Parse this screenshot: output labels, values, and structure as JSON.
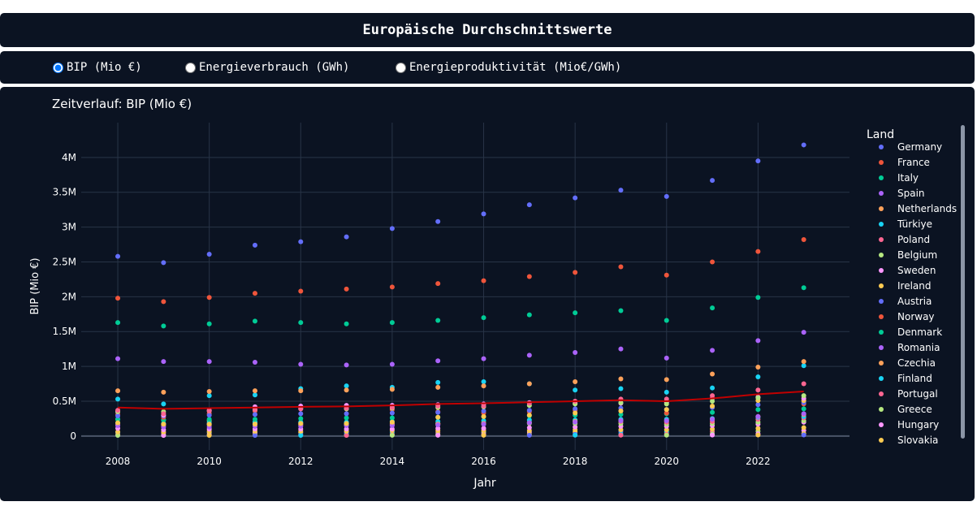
{
  "header": {
    "title": "Europäische Durchschnittswerte"
  },
  "radios": [
    {
      "label": "BIP (Mio €)",
      "checked": true
    },
    {
      "label": "Energieverbrauch (GWh)",
      "checked": false
    },
    {
      "label": "Energieproduktivität (Mio€/GWh)",
      "checked": false
    }
  ],
  "chart_data": {
    "type": "scatter",
    "title": "Zeitverlauf: BIP (Mio €)",
    "xlabel": "Jahr",
    "ylabel": "BIP (Mio €)",
    "xlim": [
      2007.2,
      2024.0
    ],
    "ylim": [
      -200000,
      4500000
    ],
    "x_ticks": [
      2008,
      2010,
      2012,
      2014,
      2016,
      2018,
      2020,
      2022
    ],
    "y_ticks": [
      {
        "value": 0,
        "label": "0"
      },
      {
        "value": 500000,
        "label": "0.5M"
      },
      {
        "value": 1000000,
        "label": "1M"
      },
      {
        "value": 1500000,
        "label": "1.5M"
      },
      {
        "value": 2000000,
        "label": "2M"
      },
      {
        "value": 2500000,
        "label": "2.5M"
      },
      {
        "value": 3000000,
        "label": "3M"
      },
      {
        "value": 3500000,
        "label": "3.5M"
      },
      {
        "value": 4000000,
        "label": "4M"
      }
    ],
    "grid": true,
    "legend_title": "Land",
    "legend_position": "right",
    "x": [
      2008,
      2009,
      2010,
      2011,
      2012,
      2013,
      2014,
      2015,
      2016,
      2017,
      2018,
      2019,
      2020,
      2021,
      2022,
      2023
    ],
    "series": [
      {
        "name": "Germany",
        "color": "#636efa",
        "values": [
          2580000,
          2490000,
          2610000,
          2740000,
          2790000,
          2860000,
          2980000,
          3080000,
          3190000,
          3320000,
          3420000,
          3530000,
          3440000,
          3670000,
          3950000,
          4180000
        ]
      },
      {
        "name": "France",
        "color": "#ef553b",
        "values": [
          1980000,
          1930000,
          1990000,
          2050000,
          2080000,
          2110000,
          2140000,
          2190000,
          2230000,
          2290000,
          2350000,
          2430000,
          2310000,
          2500000,
          2650000,
          2820000
        ]
      },
      {
        "name": "Italy",
        "color": "#00cc96",
        "values": [
          1630000,
          1580000,
          1610000,
          1650000,
          1630000,
          1610000,
          1630000,
          1660000,
          1700000,
          1740000,
          1770000,
          1800000,
          1660000,
          1840000,
          1990000,
          2130000
        ]
      },
      {
        "name": "Spain",
        "color": "#ab63fa",
        "values": [
          1110000,
          1070000,
          1070000,
          1060000,
          1030000,
          1020000,
          1030000,
          1080000,
          1110000,
          1160000,
          1200000,
          1250000,
          1120000,
          1230000,
          1370000,
          1490000
        ]
      },
      {
        "name": "Netherlands",
        "color": "#ffa15a",
        "values": [
          650000,
          630000,
          640000,
          650000,
          650000,
          660000,
          670000,
          700000,
          720000,
          750000,
          780000,
          820000,
          810000,
          890000,
          990000,
          1070000
        ]
      },
      {
        "name": "Türkiye",
        "color": "#19d3f3",
        "values": [
          530000,
          460000,
          580000,
          590000,
          680000,
          720000,
          700000,
          770000,
          780000,
          750000,
          660000,
          680000,
          630000,
          690000,
          850000,
          1010000
        ]
      },
      {
        "name": "Poland",
        "color": "#ff6692",
        "values": [
          370000,
          320000,
          360000,
          380000,
          390000,
          400000,
          410000,
          430000,
          430000,
          470000,
          500000,
          530000,
          530000,
          580000,
          660000,
          750000
        ]
      },
      {
        "name": "Belgium",
        "color": "#b6e880",
        "values": [
          350000,
          350000,
          360000,
          380000,
          390000,
          390000,
          400000,
          410000,
          420000,
          440000,
          460000,
          480000,
          460000,
          500000,
          550000,
          580000
        ]
      },
      {
        "name": "Sweden",
        "color": "#ff97ff",
        "values": [
          350000,
          300000,
          370000,
          420000,
          430000,
          440000,
          440000,
          450000,
          460000,
          480000,
          470000,
          470000,
          480000,
          540000,
          560000,
          540000
        ]
      },
      {
        "name": "Ireland",
        "color": "#fecb52",
        "values": [
          190000,
          170000,
          170000,
          170000,
          180000,
          180000,
          200000,
          270000,
          280000,
          300000,
          330000,
          360000,
          380000,
          430000,
          510000,
          510000
        ]
      },
      {
        "name": "Austria",
        "color": "#636efa",
        "values": [
          290000,
          290000,
          300000,
          310000,
          320000,
          320000,
          330000,
          340000,
          360000,
          370000,
          390000,
          400000,
          380000,
          410000,
          450000,
          480000
        ]
      },
      {
        "name": "Norway",
        "color": "#ef553b",
        "values": [
          310000,
          270000,
          320000,
          360000,
          400000,
          390000,
          380000,
          350000,
          330000,
          350000,
          370000,
          360000,
          330000,
          420000,
          550000,
          460000
        ]
      },
      {
        "name": "Denmark",
        "color": "#00cc96",
        "values": [
          240000,
          230000,
          240000,
          240000,
          250000,
          260000,
          260000,
          270000,
          280000,
          290000,
          300000,
          310000,
          320000,
          340000,
          380000,
          390000
        ]
      },
      {
        "name": "Romania",
        "color": "#ab63fa",
        "values": [
          150000,
          130000,
          130000,
          140000,
          140000,
          150000,
          150000,
          160000,
          170000,
          190000,
          200000,
          220000,
          220000,
          240000,
          280000,
          320000
        ]
      },
      {
        "name": "Czechia",
        "color": "#ffa15a",
        "values": [
          160000,
          150000,
          160000,
          170000,
          160000,
          160000,
          160000,
          170000,
          180000,
          190000,
          210000,
          220000,
          220000,
          240000,
          280000,
          310000
        ]
      },
      {
        "name": "Finland",
        "color": "#19d3f3",
        "values": [
          190000,
          180000,
          190000,
          200000,
          200000,
          200000,
          210000,
          210000,
          220000,
          230000,
          230000,
          240000,
          240000,
          250000,
          270000,
          280000
        ]
      },
      {
        "name": "Portugal",
        "color": "#ff6692",
        "values": [
          180000,
          170000,
          180000,
          180000,
          170000,
          170000,
          170000,
          180000,
          190000,
          200000,
          210000,
          210000,
          200000,
          210000,
          240000,
          260000
        ]
      },
      {
        "name": "Greece",
        "color": "#b6e880",
        "values": [
          240000,
          230000,
          220000,
          200000,
          190000,
          180000,
          180000,
          180000,
          170000,
          180000,
          180000,
          180000,
          170000,
          180000,
          200000,
          220000
        ]
      },
      {
        "name": "Hungary",
        "color": "#ff97ff",
        "values": [
          110000,
          90000,
          100000,
          100000,
          100000,
          100000,
          100000,
          110000,
          110000,
          120000,
          130000,
          140000,
          140000,
          150000,
          170000,
          200000
        ]
      },
      {
        "name": "Slovakia",
        "color": "#fecb52",
        "values": [
          60000,
          60000,
          70000,
          70000,
          70000,
          70000,
          80000,
          80000,
          80000,
          80000,
          90000,
          90000,
          90000,
          100000,
          110000,
          120000
        ]
      }
    ],
    "extra_points": {
      "values": [
        [
          50000,
          20000,
          10000
        ],
        [
          45000,
          18000,
          9000
        ],
        [
          48000,
          19000,
          9500
        ],
        [
          50000,
          20000,
          10000
        ],
        [
          49000,
          21000,
          10000
        ],
        [
          50000,
          22000,
          10500
        ],
        [
          52000,
          23000,
          11000
        ],
        [
          54000,
          24000,
          11000
        ],
        [
          55000,
          25000,
          11500
        ],
        [
          57000,
          26000,
          12000
        ],
        [
          59000,
          27000,
          12500
        ],
        [
          62000,
          28000,
          13000
        ],
        [
          60000,
          28000,
          13000
        ],
        [
          65000,
          30000,
          14000
        ],
        [
          70000,
          32000,
          15000
        ],
        [
          80000,
          35000,
          16000
        ]
      ]
    },
    "average": {
      "color": "#c00000",
      "values": [
        410000,
        390000,
        400000,
        410000,
        420000,
        425000,
        440000,
        460000,
        470000,
        485000,
        500000,
        515000,
        500000,
        540000,
        600000,
        640000
      ]
    }
  }
}
